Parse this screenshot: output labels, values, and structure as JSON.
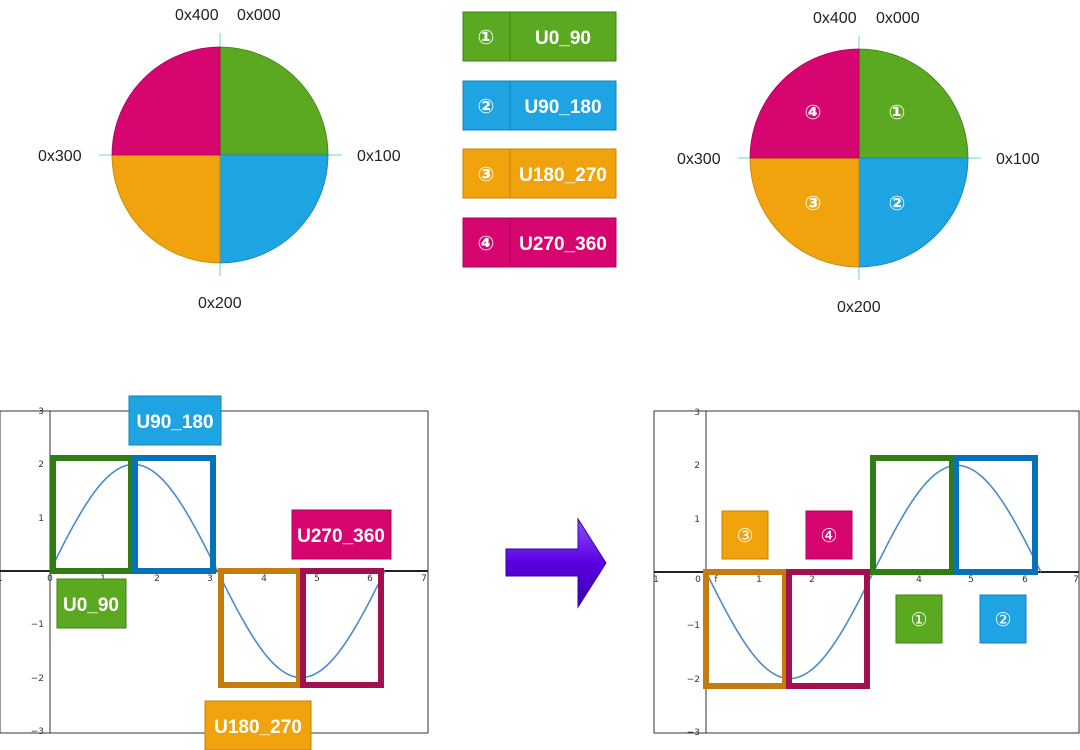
{
  "colors": {
    "q1": "#5ba921",
    "q2": "#1ea4e2",
    "q3": "#f0a30d",
    "q4": "#d60570",
    "box1": "#2f7d13",
    "box2": "#0872b8",
    "box3": "#c47b10",
    "box4": "#a2104f",
    "curve": "#4a8bc9",
    "axis_line": "#63d6e6",
    "arrow": "#5a00e0"
  },
  "left_circle": {
    "labels": {
      "top_left": "0x400",
      "top_right": "0x000",
      "right": "0x100",
      "bottom": "0x200",
      "left": "0x300"
    }
  },
  "right_circle": {
    "labels": {
      "top_left": "0x400",
      "top_right": "0x000",
      "right": "0x100",
      "bottom": "0x200",
      "left": "0x300"
    },
    "quadrant_numbers": [
      "①",
      "②",
      "③",
      "④"
    ]
  },
  "legend": [
    {
      "number": "①",
      "label": "U0_90",
      "color_key": "q1"
    },
    {
      "number": "②",
      "label": "U90_180",
      "color_key": "q2"
    },
    {
      "number": "③",
      "label": "U180_270",
      "color_key": "q3"
    },
    {
      "number": "④",
      "label": "U270_360",
      "color_key": "q4"
    }
  ],
  "left_plot": {
    "x_ticks": [
      "1",
      "0",
      "1",
      "2",
      "3",
      "4",
      "5",
      "6",
      "7"
    ],
    "y_ticks": [
      "3",
      "2",
      "1",
      "−1",
      "−2",
      "−3"
    ],
    "labels": {
      "u0_90": "U0_90",
      "u90_180": "U90_180",
      "u180_270": "U180_270",
      "u270_360": "U270_360"
    }
  },
  "right_plot": {
    "x_ticks": [
      "1",
      "0",
      "f",
      "1",
      "2",
      "4",
      "5",
      "6",
      "7"
    ],
    "y_ticks": [
      "3",
      "2",
      "1",
      "−1",
      "−2",
      "−3"
    ],
    "badges": {
      "one": "①",
      "two": "②",
      "three": "③",
      "four": "④"
    }
  },
  "chart_data": {
    "type": "line",
    "series": [
      {
        "function": "2*sin(x)",
        "x_range": [
          0,
          6.28
        ],
        "amplitude": 2
      }
    ],
    "xlim": [
      -1,
      7
    ],
    "ylim": [
      -3,
      3
    ]
  }
}
